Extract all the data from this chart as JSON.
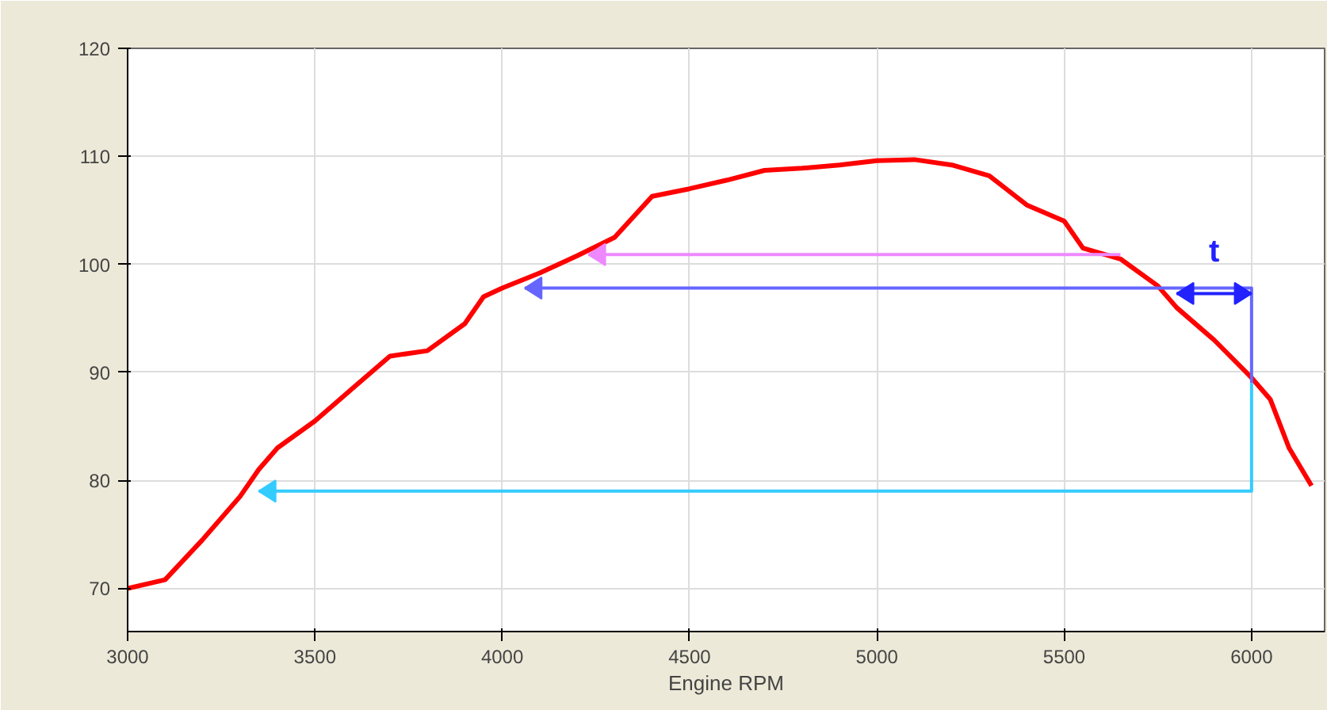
{
  "chart_data": {
    "type": "line",
    "xlabel": "Engine RPM",
    "xlim": [
      3000,
      6195
    ],
    "ylim": [
      66,
      120
    ],
    "xticks": [
      3000,
      3500,
      4000,
      4500,
      5000,
      5500,
      6000
    ],
    "yticks": [
      70,
      80,
      90,
      100,
      110,
      120
    ],
    "grid": true,
    "annotations": [
      "t"
    ],
    "series": [
      {
        "color": "#ff0000",
        "x": [
          3000,
          3100,
          3200,
          3300,
          3350,
          3400,
          3500,
          3600,
          3700,
          3800,
          3900,
          3950,
          4000,
          4100,
          4200,
          4300,
          4400,
          4500,
          4600,
          4700,
          4800,
          4900,
          5000,
          5100,
          5200,
          5300,
          5400,
          5500,
          5550,
          5650,
          5750,
          5800,
          5900,
          6000,
          6050,
          6100,
          6160
        ],
        "values": [
          70,
          70.8,
          74.5,
          78.5,
          81,
          83,
          85.5,
          88.5,
          91.5,
          92,
          94.5,
          97,
          97.8,
          99.2,
          100.8,
          102.5,
          106.3,
          107,
          107.8,
          108.7,
          108.9,
          109.2,
          109.6,
          109.7,
          109.2,
          108.2,
          105.5,
          104,
          101.5,
          100.5,
          98,
          96,
          93,
          89.5,
          87.5,
          83,
          79.5
        ]
      }
    ]
  }
}
